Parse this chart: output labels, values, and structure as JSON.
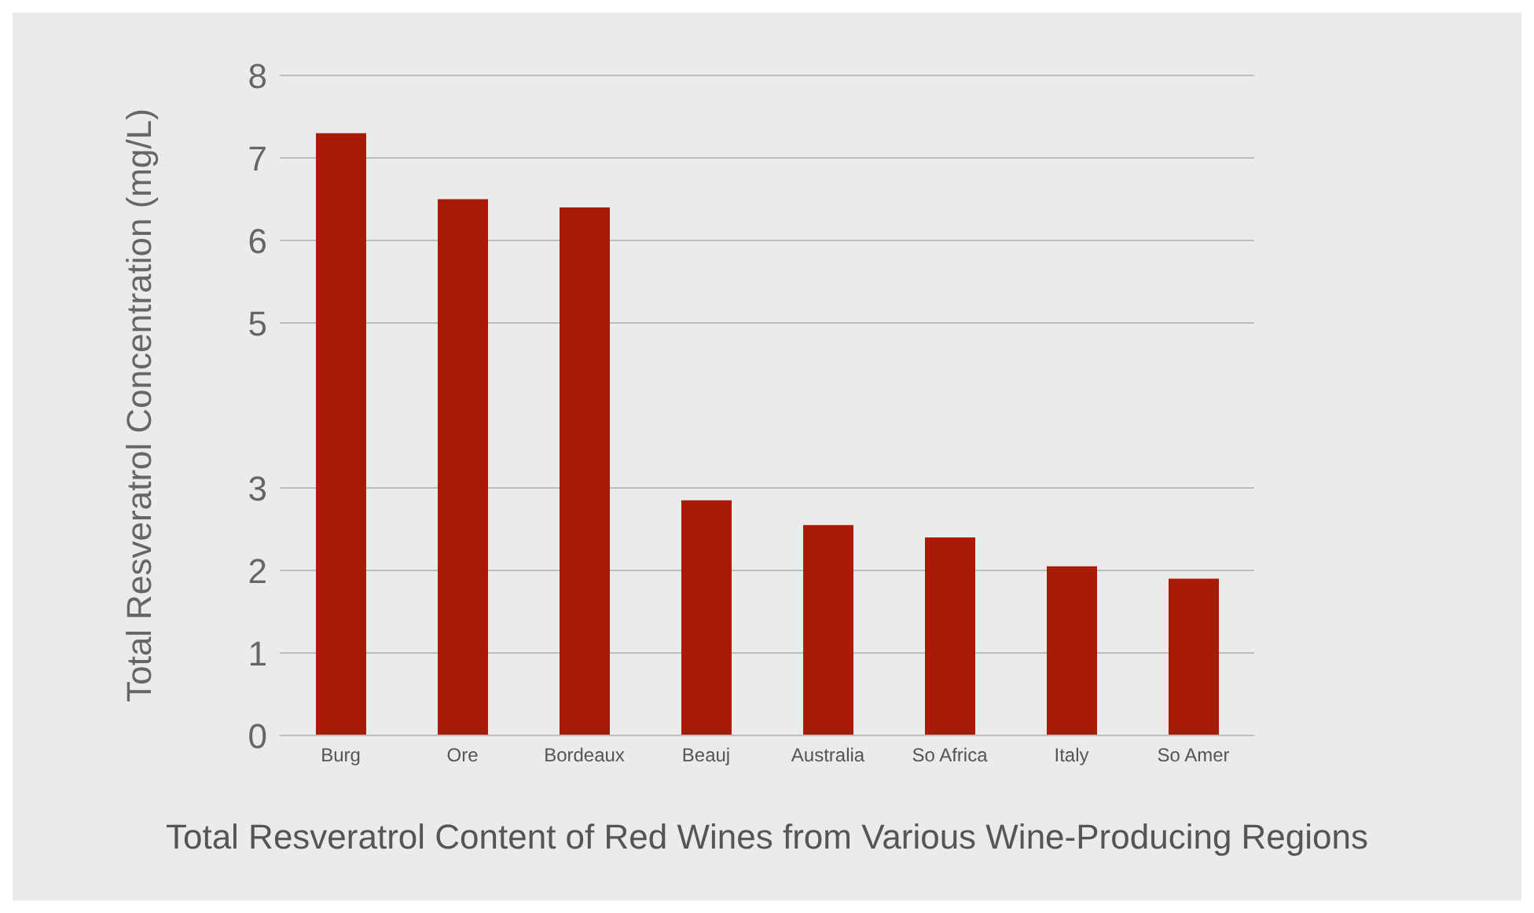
{
  "chart_data": {
    "type": "bar",
    "title": "Total Resveratrol Content of Red Wines from Various Wine-Producing Regions",
    "ylabel": "Total Resveratrol Concentration (mg/L)",
    "categories": [
      "Burg",
      "Ore",
      "Bordeaux",
      "Beauj",
      "Australia",
      "So Africa",
      "Italy",
      "So Amer"
    ],
    "values": [
      7.3,
      6.5,
      6.4,
      2.85,
      2.55,
      2.4,
      2.05,
      1.9
    ],
    "color": "#a81c07",
    "ylim": [
      0,
      8
    ],
    "yticks": [
      0,
      1,
      2,
      3,
      5,
      6,
      7,
      8
    ],
    "grid": "y"
  }
}
